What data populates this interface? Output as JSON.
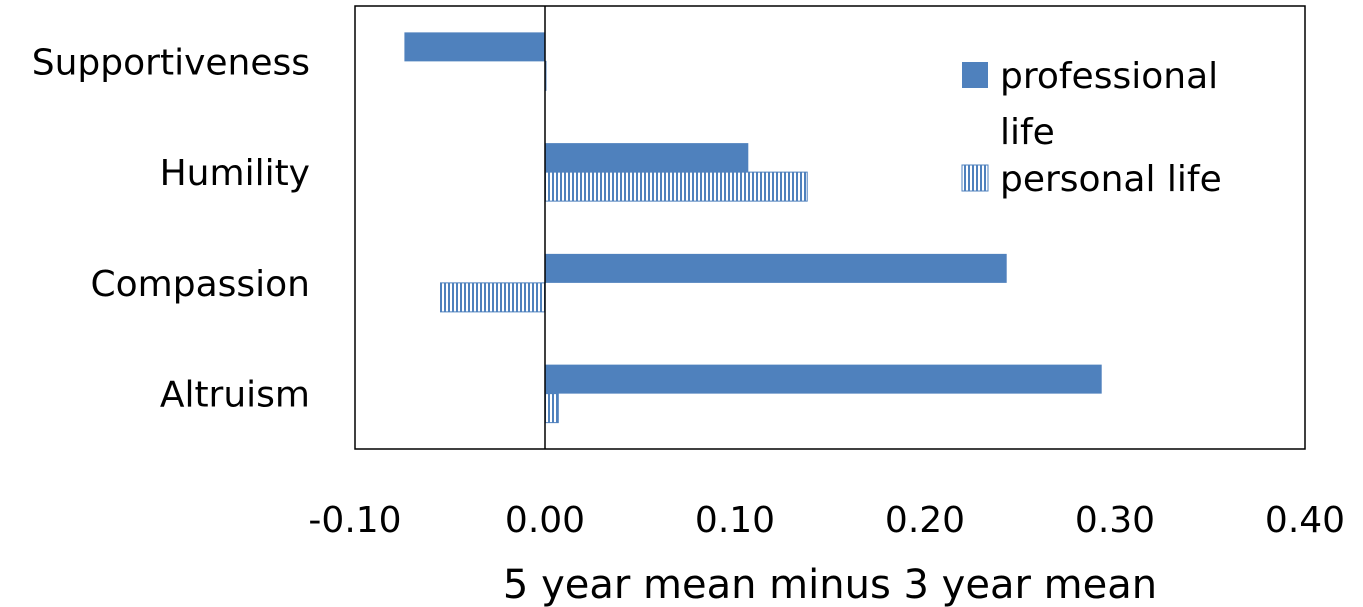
{
  "chart_data": {
    "type": "bar",
    "orientation": "horizontal",
    "categories": [
      "Supportiveness",
      "Humility",
      "Compassion",
      "Altruism"
    ],
    "series": [
      {
        "name": "professional life",
        "values": [
          -0.074,
          0.107,
          0.243,
          0.293
        ],
        "color": "#4f81bd",
        "fill": "solid"
      },
      {
        "name": "personal life",
        "values": [
          0.0,
          0.138,
          -0.055,
          0.007
        ],
        "color": "#4f81bd",
        "fill": "vertical-hatch"
      }
    ],
    "xlabel": "5 year mean minus 3 year mean",
    "ylabel": "",
    "xlim": [
      -0.1,
      0.4
    ],
    "xticks": [
      "-0.10",
      "0.00",
      "0.10",
      "0.20",
      "0.30",
      "0.40"
    ],
    "grid": false,
    "legend": {
      "position": "top-right",
      "lines": [
        [
          "professional",
          "life"
        ],
        [
          "personal life"
        ]
      ]
    }
  }
}
